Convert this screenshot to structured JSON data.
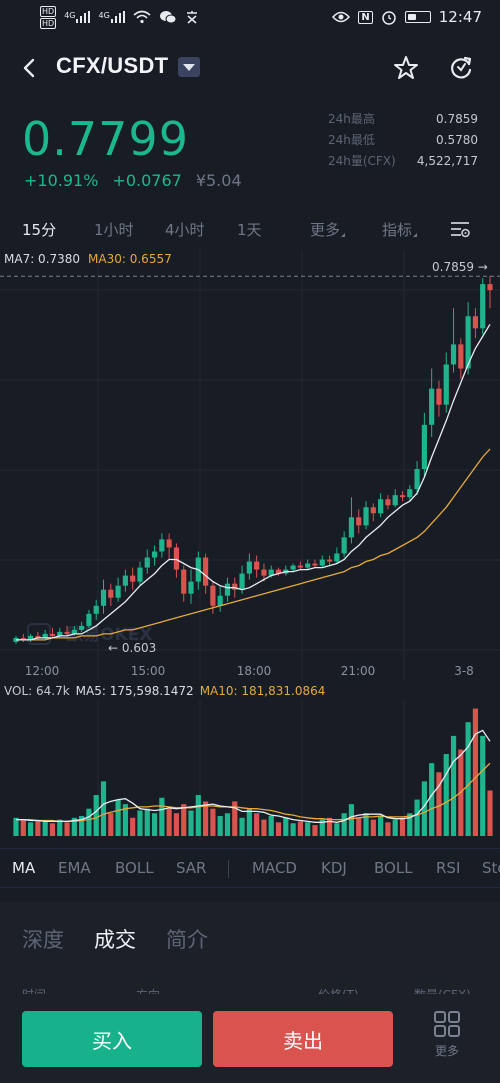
{
  "status_bar": {
    "badge_top": "HD",
    "badge_bottom": "HD",
    "signal_label_1": "4G",
    "signal_label_2": "4G",
    "nfc_label": "N",
    "time": "12:47"
  },
  "header": {
    "pair": "CFX/USDT"
  },
  "ticker": {
    "price": "0.7799",
    "change_percent": "+10.91%",
    "change_abs": "+0.0767",
    "price_cny": "¥5.04",
    "stats": [
      {
        "label": "24h最高",
        "value": "0.7859"
      },
      {
        "label": "24h最低",
        "value": "0.5780"
      },
      {
        "label": "24h量(CFX)",
        "value": "4,522,717"
      }
    ]
  },
  "intervals": {
    "items": [
      "15分",
      "1小时",
      "4小时",
      "1天",
      "更多",
      "指标"
    ],
    "active": "15分"
  },
  "ma_legend": {
    "ma7": "MA7: 0.7380",
    "ma30": "MA30: 0.6557"
  },
  "vol_legend": {
    "vol": "VOL: 64.7k",
    "ma5": "MA5: 175,598.1472",
    "ma10": "MA10: 181,831.0864"
  },
  "chart_data": {
    "type": "candlestick",
    "x_ticks": [
      "12:00",
      "15:00",
      "18:00",
      "21:00",
      "3-8"
    ],
    "high_label": "0.7859 →",
    "low_label": "← 0.603",
    "watermark": "欧易OKEX",
    "colors": {
      "up": "#1db48e",
      "down": "#d9534f",
      "ma7": "#e9ecf1",
      "ma30": "#e6a93a"
    },
    "candles": [
      [
        0.604,
        0.606,
        0.603,
        0.607
      ],
      [
        0.606,
        0.605,
        0.604,
        0.608
      ],
      [
        0.605,
        0.607,
        0.604,
        0.608
      ],
      [
        0.607,
        0.606,
        0.605,
        0.609
      ],
      [
        0.606,
        0.608,
        0.605,
        0.61
      ],
      [
        0.608,
        0.607,
        0.606,
        0.611
      ],
      [
        0.607,
        0.609,
        0.606,
        0.611
      ],
      [
        0.609,
        0.608,
        0.607,
        0.612
      ],
      [
        0.608,
        0.61,
        0.607,
        0.612
      ],
      [
        0.61,
        0.612,
        0.609,
        0.614
      ],
      [
        0.612,
        0.618,
        0.611,
        0.62
      ],
      [
        0.618,
        0.622,
        0.615,
        0.625
      ],
      [
        0.622,
        0.63,
        0.618,
        0.635
      ],
      [
        0.63,
        0.626,
        0.622,
        0.633
      ],
      [
        0.626,
        0.632,
        0.624,
        0.636
      ],
      [
        0.632,
        0.637,
        0.629,
        0.64
      ],
      [
        0.637,
        0.634,
        0.63,
        0.641
      ],
      [
        0.634,
        0.641,
        0.632,
        0.644
      ],
      [
        0.641,
        0.646,
        0.638,
        0.65
      ],
      [
        0.646,
        0.649,
        0.642,
        0.652
      ],
      [
        0.649,
        0.655,
        0.646,
        0.658
      ],
      [
        0.655,
        0.651,
        0.645,
        0.658
      ],
      [
        0.651,
        0.64,
        0.636,
        0.653
      ],
      [
        0.64,
        0.628,
        0.624,
        0.642
      ],
      [
        0.628,
        0.634,
        0.623,
        0.64
      ],
      [
        0.634,
        0.646,
        0.63,
        0.649
      ],
      [
        0.646,
        0.632,
        0.628,
        0.648
      ],
      [
        0.632,
        0.622,
        0.618,
        0.634
      ],
      [
        0.622,
        0.627,
        0.619,
        0.632
      ],
      [
        0.627,
        0.633,
        0.624,
        0.636
      ],
      [
        0.633,
        0.63,
        0.626,
        0.636
      ],
      [
        0.63,
        0.638,
        0.628,
        0.642
      ],
      [
        0.638,
        0.644,
        0.635,
        0.648
      ],
      [
        0.644,
        0.64,
        0.636,
        0.647
      ],
      [
        0.64,
        0.637,
        0.634,
        0.643
      ],
      [
        0.637,
        0.64,
        0.636,
        0.642
      ],
      [
        0.64,
        0.638,
        0.637,
        0.641
      ],
      [
        0.638,
        0.64,
        0.637,
        0.642
      ],
      [
        0.64,
        0.642,
        0.639,
        0.643
      ],
      [
        0.642,
        0.641,
        0.64,
        0.644
      ],
      [
        0.641,
        0.643,
        0.64,
        0.645
      ],
      [
        0.643,
        0.642,
        0.641,
        0.645
      ],
      [
        0.642,
        0.645,
        0.641,
        0.647
      ],
      [
        0.645,
        0.644,
        0.642,
        0.647
      ],
      [
        0.644,
        0.648,
        0.643,
        0.651
      ],
      [
        0.648,
        0.656,
        0.646,
        0.659
      ],
      [
        0.656,
        0.666,
        0.653,
        0.676
      ],
      [
        0.666,
        0.662,
        0.658,
        0.67
      ],
      [
        0.662,
        0.671,
        0.66,
        0.674
      ],
      [
        0.671,
        0.668,
        0.664,
        0.673
      ],
      [
        0.668,
        0.675,
        0.666,
        0.678
      ],
      [
        0.675,
        0.672,
        0.67,
        0.677
      ],
      [
        0.672,
        0.677,
        0.671,
        0.68
      ],
      [
        0.677,
        0.676,
        0.674,
        0.679
      ],
      [
        0.676,
        0.68,
        0.674,
        0.682
      ],
      [
        0.68,
        0.69,
        0.677,
        0.694
      ],
      [
        0.69,
        0.712,
        0.686,
        0.718
      ],
      [
        0.712,
        0.73,
        0.706,
        0.74
      ],
      [
        0.73,
        0.722,
        0.716,
        0.734
      ],
      [
        0.722,
        0.742,
        0.718,
        0.748
      ],
      [
        0.742,
        0.752,
        0.738,
        0.77
      ],
      [
        0.752,
        0.74,
        0.735,
        0.755
      ],
      [
        0.74,
        0.766,
        0.737,
        0.773
      ],
      [
        0.766,
        0.76,
        0.755,
        0.77
      ],
      [
        0.76,
        0.782,
        0.757,
        0.785
      ],
      [
        0.782,
        0.779,
        0.77,
        0.786
      ]
    ],
    "ma7": [
      0.605,
      0.605,
      0.605,
      0.606,
      0.606,
      0.606,
      0.607,
      0.607,
      0.608,
      0.608,
      0.61,
      0.612,
      0.615,
      0.618,
      0.621,
      0.624,
      0.628,
      0.632,
      0.635,
      0.638,
      0.642,
      0.645,
      0.645,
      0.643,
      0.641,
      0.64,
      0.637,
      0.634,
      0.632,
      0.631,
      0.631,
      0.63,
      0.631,
      0.633,
      0.635,
      0.637,
      0.638,
      0.639,
      0.639,
      0.64,
      0.64,
      0.641,
      0.641,
      0.642,
      0.643,
      0.645,
      0.649,
      0.652,
      0.656,
      0.659,
      0.662,
      0.666,
      0.669,
      0.672,
      0.674,
      0.678,
      0.686,
      0.696,
      0.705,
      0.714,
      0.724,
      0.733,
      0.742,
      0.75,
      0.756,
      0.762
    ],
    "ma30": [
      0.605,
      0.605,
      0.605,
      0.605,
      0.605,
      0.606,
      0.606,
      0.606,
      0.606,
      0.607,
      0.607,
      0.607,
      0.608,
      0.608,
      0.609,
      0.61,
      0.61,
      0.611,
      0.612,
      0.613,
      0.614,
      0.615,
      0.616,
      0.617,
      0.618,
      0.619,
      0.62,
      0.621,
      0.622,
      0.623,
      0.624,
      0.625,
      0.626,
      0.627,
      0.628,
      0.629,
      0.63,
      0.631,
      0.632,
      0.633,
      0.634,
      0.635,
      0.636,
      0.637,
      0.638,
      0.639,
      0.641,
      0.642,
      0.644,
      0.645,
      0.647,
      0.648,
      0.65,
      0.652,
      0.654,
      0.656,
      0.659,
      0.663,
      0.667,
      0.671,
      0.676,
      0.681,
      0.686,
      0.691,
      0.696,
      0.7
    ],
    "volume": [
      20,
      18,
      15,
      17,
      16,
      14,
      18,
      15,
      20,
      22,
      30,
      45,
      60,
      25,
      40,
      35,
      20,
      28,
      30,
      25,
      42,
      30,
      25,
      35,
      28,
      45,
      38,
      30,
      22,
      25,
      38,
      20,
      30,
      25,
      18,
      22,
      15,
      20,
      14,
      16,
      15,
      12,
      18,
      20,
      14,
      25,
      35,
      20,
      25,
      18,
      22,
      15,
      18,
      20,
      25,
      40,
      60,
      80,
      70,
      90,
      110,
      95,
      125,
      140,
      110,
      50
    ],
    "vol_ma5": [
      18,
      18,
      17,
      17,
      16,
      16,
      16,
      16,
      17,
      18,
      21,
      27,
      35,
      38,
      40,
      41,
      36,
      30,
      29,
      28,
      29,
      31,
      30,
      31,
      32,
      33,
      34,
      35,
      33,
      32,
      31,
      27,
      27,
      27,
      26,
      23,
      22,
      20,
      18,
      17,
      16,
      15,
      15,
      16,
      15,
      17,
      21,
      23,
      24,
      24,
      24,
      20,
      19,
      19,
      20,
      24,
      33,
      45,
      55,
      68,
      82,
      89,
      98,
      112,
      116,
      104
    ],
    "vol_ma10": [
      18,
      18,
      18,
      17,
      17,
      17,
      16,
      16,
      16,
      17,
      18,
      20,
      24,
      26,
      28,
      30,
      31,
      32,
      32,
      33,
      33,
      32,
      31,
      31,
      31,
      32,
      33,
      33,
      32,
      32,
      32,
      31,
      30,
      30,
      29,
      28,
      26,
      24,
      23,
      21,
      20,
      19,
      19,
      18,
      18,
      18,
      19,
      20,
      21,
      21,
      22,
      21,
      21,
      21,
      22,
      23,
      26,
      30,
      33,
      37,
      42,
      48,
      56,
      64,
      72,
      80
    ]
  },
  "indicators": {
    "items": [
      "MA",
      "EMA",
      "BOLL",
      "SAR",
      "MACD",
      "KDJ",
      "BOLL",
      "RSI",
      "Sto"
    ],
    "active": "MA"
  },
  "subtabs": {
    "items": [
      "深度",
      "成交",
      "简介"
    ],
    "active": "成交"
  },
  "trade_columns": [
    "时间",
    "方向",
    "价格(T)",
    "数量(CFX)"
  ],
  "bottom": {
    "buy": "买入",
    "sell": "卖出",
    "more": "更多"
  }
}
